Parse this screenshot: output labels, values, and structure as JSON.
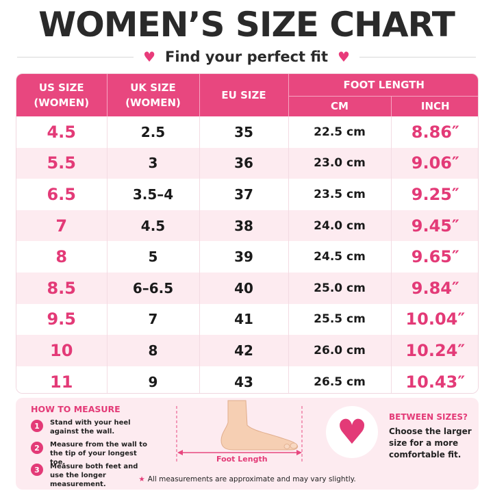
{
  "title": "WOMEN’S SIZE CHART",
  "subtitle": "Find your perfect fit",
  "icons": {
    "heart": "heart-icon",
    "star": "star-icon",
    "foot": "foot-icon"
  },
  "colors": {
    "accent": "#e8477f",
    "row_tint": "#fdebf0"
  },
  "table": {
    "headers": {
      "us": "US SIZE (WOMEN)",
      "uk": "UK SIZE (WOMEN)",
      "eu": "EU SIZE",
      "foot_length": "FOOT LENGTH",
      "cm": "CM",
      "inch": "INCH"
    },
    "rows": [
      {
        "us": "4.5",
        "uk": "2.5",
        "eu": "35",
        "cm": "22.5 cm",
        "inch": "8.86″"
      },
      {
        "us": "5.5",
        "uk": "3",
        "eu": "36",
        "cm": "23.0 cm",
        "inch": "9.06″"
      },
      {
        "us": "6.5",
        "uk": "3.5–4",
        "eu": "37",
        "cm": "23.5 cm",
        "inch": "9.25″"
      },
      {
        "us": "7",
        "uk": "4.5",
        "eu": "38",
        "cm": "24.0 cm",
        "inch": "9.45″"
      },
      {
        "us": "8",
        "uk": "5",
        "eu": "39",
        "cm": "24.5 cm",
        "inch": "9.65″"
      },
      {
        "us": "8.5",
        "uk": "6–6.5",
        "eu": "40",
        "cm": "25.0 cm",
        "inch": "9.84″"
      },
      {
        "us": "9.5",
        "uk": "7",
        "eu": "41",
        "cm": "25.5 cm",
        "inch": "10.04″"
      },
      {
        "us": "10",
        "uk": "8",
        "eu": "42",
        "cm": "26.0 cm",
        "inch": "10.24″"
      },
      {
        "us": "11",
        "uk": "9",
        "eu": "43",
        "cm": "26.5 cm",
        "inch": "10.43″"
      }
    ]
  },
  "how_to_measure": {
    "title": "HOW TO MEASURE",
    "steps": [
      {
        "num": "1",
        "text": "Stand with your heel against the wall."
      },
      {
        "num": "2",
        "text": "Measure from the wall to the tip of your longest toe."
      },
      {
        "num": "3",
        "text": "Measure both feet and use the longer measurement."
      }
    ]
  },
  "foot_length_label": "Foot Length",
  "between_sizes": {
    "title": "BETWEEN SIZES?",
    "text": "Choose the larger size for a more comfortable fit."
  },
  "note": "All measurements are approximate and may vary slightly."
}
